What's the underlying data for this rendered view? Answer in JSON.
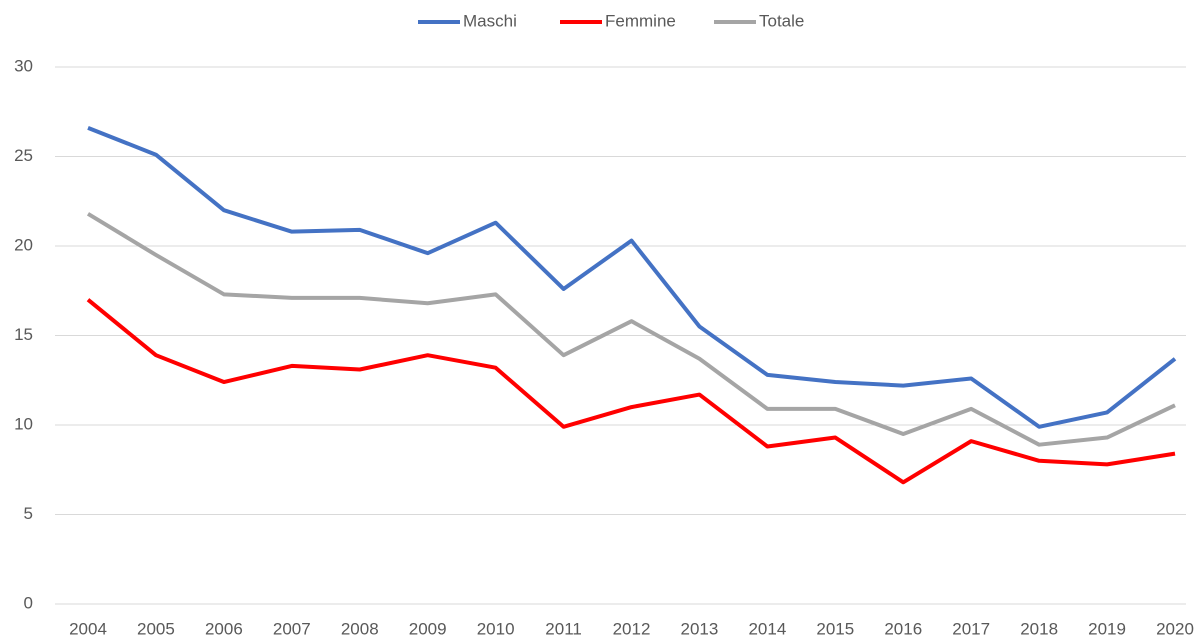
{
  "chart_data": {
    "type": "line",
    "categories": [
      "2004",
      "2005",
      "2006",
      "2007",
      "2008",
      "2009",
      "2010",
      "2011",
      "2012",
      "2013",
      "2014",
      "2015",
      "2016",
      "2017",
      "2018",
      "2019",
      "2020"
    ],
    "series": [
      {
        "name": "Maschi",
        "color": "#4472c4",
        "values": [
          26.6,
          25.1,
          22.0,
          20.8,
          20.9,
          19.6,
          21.3,
          17.6,
          20.3,
          15.5,
          12.8,
          12.4,
          12.2,
          12.6,
          9.9,
          10.7,
          13.7
        ]
      },
      {
        "name": "Femmine",
        "color": "#ff0000",
        "values": [
          17.0,
          13.9,
          12.4,
          13.3,
          13.1,
          13.9,
          13.2,
          9.9,
          11.0,
          11.7,
          8.8,
          9.3,
          6.8,
          9.1,
          8.0,
          7.8,
          8.4
        ]
      },
      {
        "name": "Totale",
        "color": "#a5a5a5",
        "values": [
          21.8,
          19.5,
          17.3,
          17.1,
          17.1,
          16.8,
          17.3,
          13.9,
          15.8,
          13.7,
          10.9,
          10.9,
          9.5,
          10.9,
          8.9,
          9.3,
          11.1
        ]
      }
    ],
    "ylim": [
      0,
      30
    ],
    "yticks": [
      0,
      5,
      10,
      15,
      20,
      25,
      30
    ],
    "grid": true,
    "legend": "top"
  }
}
